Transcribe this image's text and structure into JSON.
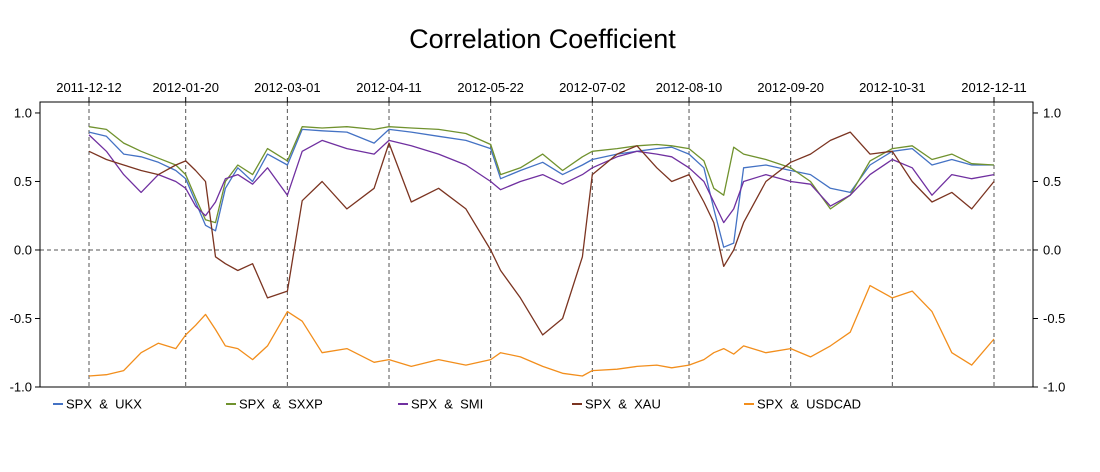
{
  "chart_data": {
    "type": "line",
    "title": "Correlation Coefficient",
    "xlabel": "",
    "ylabel": "",
    "x_ticks": [
      "2011-12-12",
      "2012-01-20",
      "2012-03-01",
      "2012-04-11",
      "2012-05-22",
      "2012-07-02",
      "2012-08-10",
      "2012-09-20",
      "2012-10-31",
      "2012-12-11"
    ],
    "x_range": [
      "2011-12-12",
      "2012-12-11"
    ],
    "y_ticks": [
      "1.0",
      "0.5",
      "0.0",
      "-0.5",
      "-1.0"
    ],
    "y_tick_values": [
      1.0,
      0.5,
      0.0,
      -0.5,
      -1.0
    ],
    "ylim": [
      -1.0,
      1.08
    ],
    "grid": "dashed reference lines at each date tick and at y = 0",
    "legend_position": "bottom",
    "series": [
      {
        "name": "SPX  &  UKX",
        "color": "#4472C4",
        "points": [
          [
            "2011-12-12",
            0.86
          ],
          [
            "2011-12-19",
            0.83
          ],
          [
            "2011-12-26",
            0.7
          ],
          [
            "2012-01-02",
            0.68
          ],
          [
            "2012-01-09",
            0.64
          ],
          [
            "2012-01-16",
            0.58
          ],
          [
            "2012-01-20",
            0.52
          ],
          [
            "2012-01-24",
            0.35
          ],
          [
            "2012-01-28",
            0.18
          ],
          [
            "2012-02-01",
            0.14
          ],
          [
            "2012-02-05",
            0.45
          ],
          [
            "2012-02-10",
            0.6
          ],
          [
            "2012-02-16",
            0.5
          ],
          [
            "2012-02-22",
            0.7
          ],
          [
            "2012-03-01",
            0.62
          ],
          [
            "2012-03-07",
            0.88
          ],
          [
            "2012-03-15",
            0.87
          ],
          [
            "2012-03-25",
            0.86
          ],
          [
            "2012-04-05",
            0.78
          ],
          [
            "2012-04-11",
            0.88
          ],
          [
            "2012-04-20",
            0.86
          ],
          [
            "2012-05-01",
            0.83
          ],
          [
            "2012-05-12",
            0.8
          ],
          [
            "2012-05-22",
            0.74
          ],
          [
            "2012-05-26",
            0.52
          ],
          [
            "2012-06-03",
            0.58
          ],
          [
            "2012-06-12",
            0.64
          ],
          [
            "2012-06-20",
            0.55
          ],
          [
            "2012-06-28",
            0.62
          ],
          [
            "2012-07-02",
            0.66
          ],
          [
            "2012-07-12",
            0.7
          ],
          [
            "2012-07-20",
            0.72
          ],
          [
            "2012-07-28",
            0.74
          ],
          [
            "2012-08-03",
            0.75
          ],
          [
            "2012-08-10",
            0.7
          ],
          [
            "2012-08-16",
            0.6
          ],
          [
            "2012-08-20",
            0.3
          ],
          [
            "2012-08-24",
            0.02
          ],
          [
            "2012-08-28",
            0.05
          ],
          [
            "2012-09-01",
            0.6
          ],
          [
            "2012-09-10",
            0.62
          ],
          [
            "2012-09-20",
            0.58
          ],
          [
            "2012-09-28",
            0.55
          ],
          [
            "2012-10-06",
            0.45
          ],
          [
            "2012-10-14",
            0.42
          ],
          [
            "2012-10-22",
            0.62
          ],
          [
            "2012-10-31",
            0.72
          ],
          [
            "2012-11-08",
            0.74
          ],
          [
            "2012-11-16",
            0.62
          ],
          [
            "2012-11-24",
            0.66
          ],
          [
            "2012-12-02",
            0.62
          ],
          [
            "2012-12-11",
            0.62
          ]
        ]
      },
      {
        "name": "SPX  &  SXXP",
        "color": "#70922E",
        "points": [
          [
            "2011-12-12",
            0.9
          ],
          [
            "2011-12-19",
            0.88
          ],
          [
            "2011-12-26",
            0.78
          ],
          [
            "2012-01-02",
            0.72
          ],
          [
            "2012-01-09",
            0.67
          ],
          [
            "2012-01-16",
            0.62
          ],
          [
            "2012-01-20",
            0.55
          ],
          [
            "2012-01-24",
            0.38
          ],
          [
            "2012-01-28",
            0.22
          ],
          [
            "2012-02-01",
            0.2
          ],
          [
            "2012-02-05",
            0.5
          ],
          [
            "2012-02-10",
            0.62
          ],
          [
            "2012-02-16",
            0.55
          ],
          [
            "2012-02-22",
            0.74
          ],
          [
            "2012-03-01",
            0.65
          ],
          [
            "2012-03-07",
            0.9
          ],
          [
            "2012-03-15",
            0.89
          ],
          [
            "2012-03-25",
            0.9
          ],
          [
            "2012-04-05",
            0.88
          ],
          [
            "2012-04-11",
            0.9
          ],
          [
            "2012-04-20",
            0.89
          ],
          [
            "2012-05-01",
            0.88
          ],
          [
            "2012-05-12",
            0.85
          ],
          [
            "2012-05-22",
            0.77
          ],
          [
            "2012-05-26",
            0.55
          ],
          [
            "2012-06-03",
            0.6
          ],
          [
            "2012-06-12",
            0.7
          ],
          [
            "2012-06-20",
            0.58
          ],
          [
            "2012-06-28",
            0.68
          ],
          [
            "2012-07-02",
            0.72
          ],
          [
            "2012-07-12",
            0.74
          ],
          [
            "2012-07-20",
            0.76
          ],
          [
            "2012-07-28",
            0.77
          ],
          [
            "2012-08-03",
            0.76
          ],
          [
            "2012-08-10",
            0.74
          ],
          [
            "2012-08-16",
            0.65
          ],
          [
            "2012-08-20",
            0.45
          ],
          [
            "2012-08-24",
            0.4
          ],
          [
            "2012-08-28",
            0.75
          ],
          [
            "2012-09-01",
            0.7
          ],
          [
            "2012-09-10",
            0.66
          ],
          [
            "2012-09-20",
            0.6
          ],
          [
            "2012-09-28",
            0.5
          ],
          [
            "2012-10-06",
            0.3
          ],
          [
            "2012-10-14",
            0.4
          ],
          [
            "2012-10-22",
            0.65
          ],
          [
            "2012-10-31",
            0.74
          ],
          [
            "2012-11-08",
            0.76
          ],
          [
            "2012-11-16",
            0.66
          ],
          [
            "2012-11-24",
            0.7
          ],
          [
            "2012-12-02",
            0.63
          ],
          [
            "2012-12-11",
            0.62
          ]
        ]
      },
      {
        "name": "SPX  &  SMI",
        "color": "#7030A0",
        "points": [
          [
            "2011-12-12",
            0.84
          ],
          [
            "2011-12-19",
            0.72
          ],
          [
            "2011-12-26",
            0.55
          ],
          [
            "2012-01-02",
            0.42
          ],
          [
            "2012-01-09",
            0.55
          ],
          [
            "2012-01-16",
            0.5
          ],
          [
            "2012-01-20",
            0.45
          ],
          [
            "2012-01-24",
            0.32
          ],
          [
            "2012-01-28",
            0.25
          ],
          [
            "2012-02-01",
            0.35
          ],
          [
            "2012-02-05",
            0.52
          ],
          [
            "2012-02-10",
            0.55
          ],
          [
            "2012-02-16",
            0.48
          ],
          [
            "2012-02-22",
            0.6
          ],
          [
            "2012-03-01",
            0.4
          ],
          [
            "2012-03-07",
            0.72
          ],
          [
            "2012-03-15",
            0.8
          ],
          [
            "2012-03-25",
            0.74
          ],
          [
            "2012-04-05",
            0.7
          ],
          [
            "2012-04-11",
            0.8
          ],
          [
            "2012-04-20",
            0.76
          ],
          [
            "2012-05-01",
            0.7
          ],
          [
            "2012-05-12",
            0.62
          ],
          [
            "2012-05-22",
            0.5
          ],
          [
            "2012-05-26",
            0.44
          ],
          [
            "2012-06-03",
            0.5
          ],
          [
            "2012-06-12",
            0.55
          ],
          [
            "2012-06-20",
            0.48
          ],
          [
            "2012-06-28",
            0.55
          ],
          [
            "2012-07-02",
            0.6
          ],
          [
            "2012-07-12",
            0.68
          ],
          [
            "2012-07-20",
            0.72
          ],
          [
            "2012-07-28",
            0.7
          ],
          [
            "2012-08-03",
            0.68
          ],
          [
            "2012-08-10",
            0.6
          ],
          [
            "2012-08-16",
            0.5
          ],
          [
            "2012-08-20",
            0.35
          ],
          [
            "2012-08-24",
            0.2
          ],
          [
            "2012-08-28",
            0.3
          ],
          [
            "2012-09-01",
            0.5
          ],
          [
            "2012-09-10",
            0.55
          ],
          [
            "2012-09-20",
            0.5
          ],
          [
            "2012-09-28",
            0.48
          ],
          [
            "2012-10-06",
            0.32
          ],
          [
            "2012-10-14",
            0.4
          ],
          [
            "2012-10-22",
            0.55
          ],
          [
            "2012-10-31",
            0.66
          ],
          [
            "2012-11-08",
            0.6
          ],
          [
            "2012-11-16",
            0.4
          ],
          [
            "2012-11-24",
            0.55
          ],
          [
            "2012-12-02",
            0.52
          ],
          [
            "2012-12-11",
            0.55
          ]
        ]
      },
      {
        "name": "SPX  &  XAU",
        "color": "#7B3421",
        "points": [
          [
            "2011-12-12",
            0.72
          ],
          [
            "2011-12-19",
            0.66
          ],
          [
            "2011-12-26",
            0.62
          ],
          [
            "2012-01-02",
            0.58
          ],
          [
            "2012-01-09",
            0.55
          ],
          [
            "2012-01-16",
            0.62
          ],
          [
            "2012-01-20",
            0.65
          ],
          [
            "2012-01-24",
            0.58
          ],
          [
            "2012-01-28",
            0.5
          ],
          [
            "2012-02-01",
            -0.05
          ],
          [
            "2012-02-05",
            -0.1
          ],
          [
            "2012-02-10",
            -0.15
          ],
          [
            "2012-02-16",
            -0.1
          ],
          [
            "2012-02-22",
            -0.35
          ],
          [
            "2012-03-01",
            -0.3
          ],
          [
            "2012-03-07",
            0.36
          ],
          [
            "2012-03-15",
            0.5
          ],
          [
            "2012-03-25",
            0.3
          ],
          [
            "2012-04-05",
            0.45
          ],
          [
            "2012-04-11",
            0.78
          ],
          [
            "2012-04-20",
            0.35
          ],
          [
            "2012-05-01",
            0.45
          ],
          [
            "2012-05-12",
            0.3
          ],
          [
            "2012-05-22",
            0.0
          ],
          [
            "2012-05-26",
            -0.15
          ],
          [
            "2012-06-03",
            -0.35
          ],
          [
            "2012-06-12",
            -0.62
          ],
          [
            "2012-06-20",
            -0.5
          ],
          [
            "2012-06-28",
            -0.05
          ],
          [
            "2012-07-02",
            0.55
          ],
          [
            "2012-07-12",
            0.7
          ],
          [
            "2012-07-20",
            0.76
          ],
          [
            "2012-07-28",
            0.6
          ],
          [
            "2012-08-03",
            0.5
          ],
          [
            "2012-08-10",
            0.55
          ],
          [
            "2012-08-16",
            0.35
          ],
          [
            "2012-08-20",
            0.2
          ],
          [
            "2012-08-24",
            -0.12
          ],
          [
            "2012-08-28",
            0.0
          ],
          [
            "2012-09-01",
            0.2
          ],
          [
            "2012-09-10",
            0.5
          ],
          [
            "2012-09-20",
            0.64
          ],
          [
            "2012-09-28",
            0.7
          ],
          [
            "2012-10-06",
            0.8
          ],
          [
            "2012-10-14",
            0.86
          ],
          [
            "2012-10-22",
            0.7
          ],
          [
            "2012-10-31",
            0.72
          ],
          [
            "2012-11-08",
            0.5
          ],
          [
            "2012-11-16",
            0.35
          ],
          [
            "2012-11-24",
            0.42
          ],
          [
            "2012-12-02",
            0.3
          ],
          [
            "2012-12-11",
            0.5
          ]
        ]
      },
      {
        "name": "SPX  &  USDCAD",
        "color": "#F28E1C",
        "points": [
          [
            "2011-12-12",
            -0.92
          ],
          [
            "2011-12-19",
            -0.91
          ],
          [
            "2011-12-26",
            -0.88
          ],
          [
            "2012-01-02",
            -0.75
          ],
          [
            "2012-01-09",
            -0.68
          ],
          [
            "2012-01-16",
            -0.72
          ],
          [
            "2012-01-20",
            -0.62
          ],
          [
            "2012-01-24",
            -0.55
          ],
          [
            "2012-01-28",
            -0.47
          ],
          [
            "2012-02-01",
            -0.58
          ],
          [
            "2012-02-05",
            -0.7
          ],
          [
            "2012-02-10",
            -0.72
          ],
          [
            "2012-02-16",
            -0.8
          ],
          [
            "2012-02-22",
            -0.7
          ],
          [
            "2012-03-01",
            -0.45
          ],
          [
            "2012-03-07",
            -0.52
          ],
          [
            "2012-03-15",
            -0.75
          ],
          [
            "2012-03-25",
            -0.72
          ],
          [
            "2012-04-05",
            -0.82
          ],
          [
            "2012-04-11",
            -0.8
          ],
          [
            "2012-04-20",
            -0.85
          ],
          [
            "2012-05-01",
            -0.8
          ],
          [
            "2012-05-12",
            -0.84
          ],
          [
            "2012-05-22",
            -0.8
          ],
          [
            "2012-05-26",
            -0.75
          ],
          [
            "2012-06-03",
            -0.78
          ],
          [
            "2012-06-12",
            -0.85
          ],
          [
            "2012-06-20",
            -0.9
          ],
          [
            "2012-06-28",
            -0.92
          ],
          [
            "2012-07-02",
            -0.88
          ],
          [
            "2012-07-12",
            -0.87
          ],
          [
            "2012-07-20",
            -0.85
          ],
          [
            "2012-07-28",
            -0.84
          ],
          [
            "2012-08-03",
            -0.86
          ],
          [
            "2012-08-10",
            -0.84
          ],
          [
            "2012-08-16",
            -0.8
          ],
          [
            "2012-08-20",
            -0.75
          ],
          [
            "2012-08-24",
            -0.72
          ],
          [
            "2012-08-28",
            -0.76
          ],
          [
            "2012-09-01",
            -0.7
          ],
          [
            "2012-09-10",
            -0.75
          ],
          [
            "2012-09-20",
            -0.72
          ],
          [
            "2012-09-28",
            -0.78
          ],
          [
            "2012-10-06",
            -0.7
          ],
          [
            "2012-10-14",
            -0.6
          ],
          [
            "2012-10-22",
            -0.26
          ],
          [
            "2012-10-31",
            -0.35
          ],
          [
            "2012-11-08",
            -0.3
          ],
          [
            "2012-11-16",
            -0.45
          ],
          [
            "2012-11-24",
            -0.75
          ],
          [
            "2012-12-02",
            -0.84
          ],
          [
            "2012-12-11",
            -0.65
          ]
        ]
      }
    ]
  }
}
